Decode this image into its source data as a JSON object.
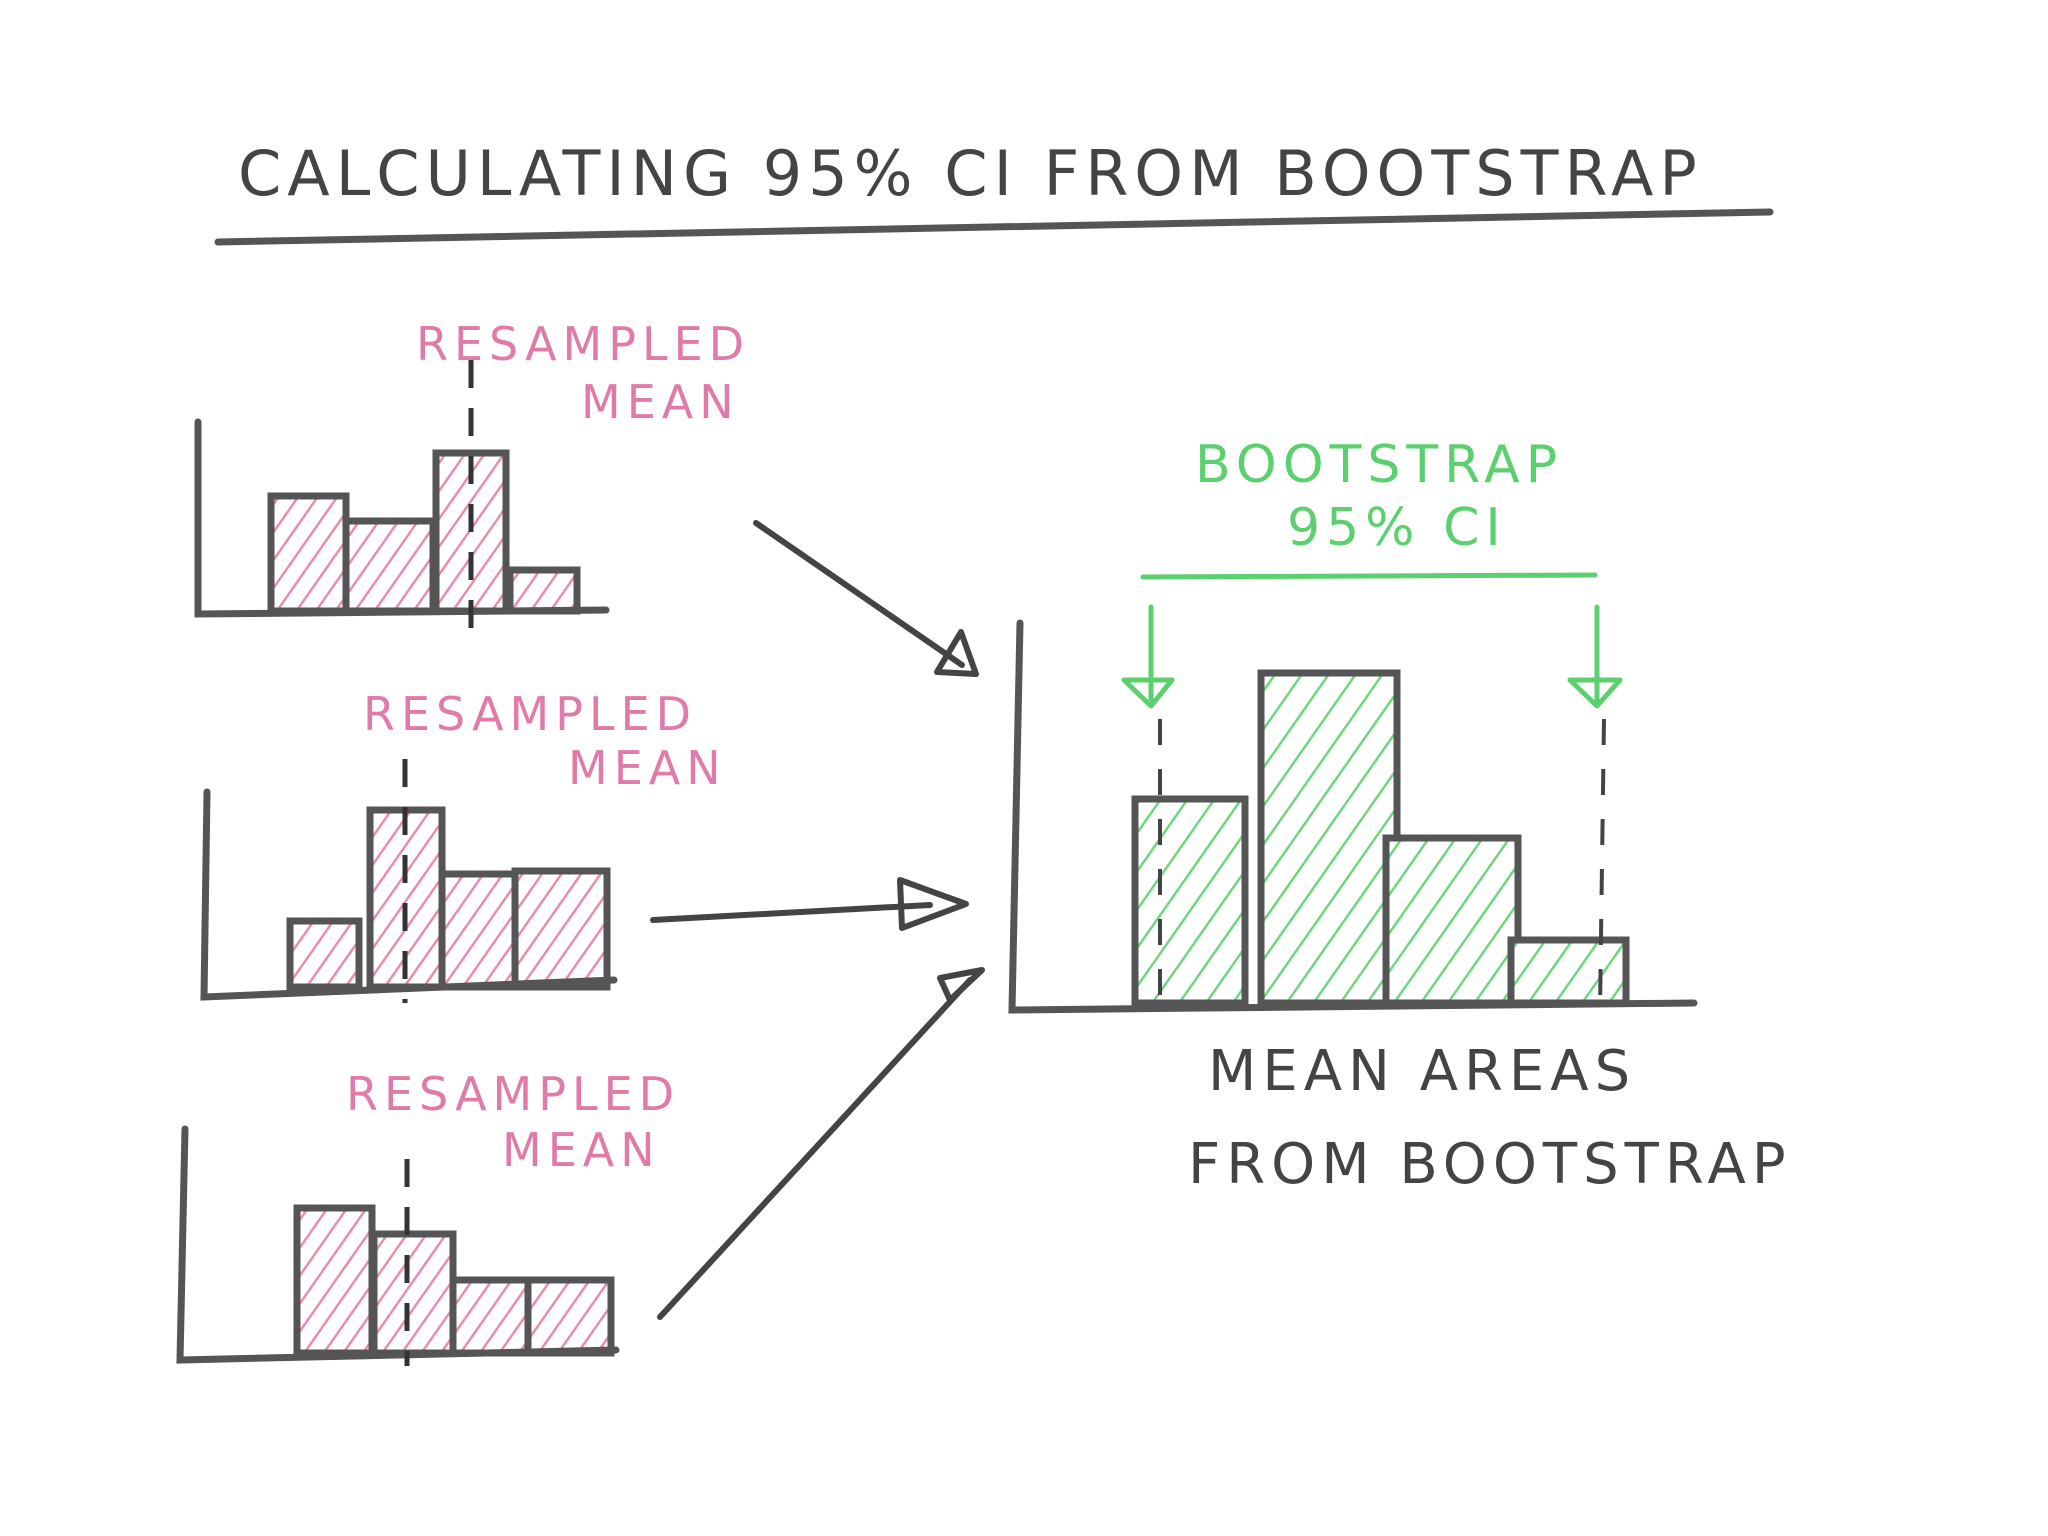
{
  "header": {
    "title": "CALCULATING 95% CI FROM BOOTSTRAP"
  },
  "resamples": [
    {
      "label_lines": [
        "RESAMPLED",
        "MEAN"
      ]
    },
    {
      "label_lines": [
        "RESAMPLED",
        "MEAN"
      ]
    },
    {
      "label_lines": [
        "RESAMPLED",
        "MEAN"
      ]
    }
  ],
  "bootstrap": {
    "ci_label_lines": [
      "BOOTSTRAP",
      "95% CI"
    ],
    "caption_lines": [
      "MEAN AREAS",
      "FROM BOOTSTRAP"
    ]
  }
}
